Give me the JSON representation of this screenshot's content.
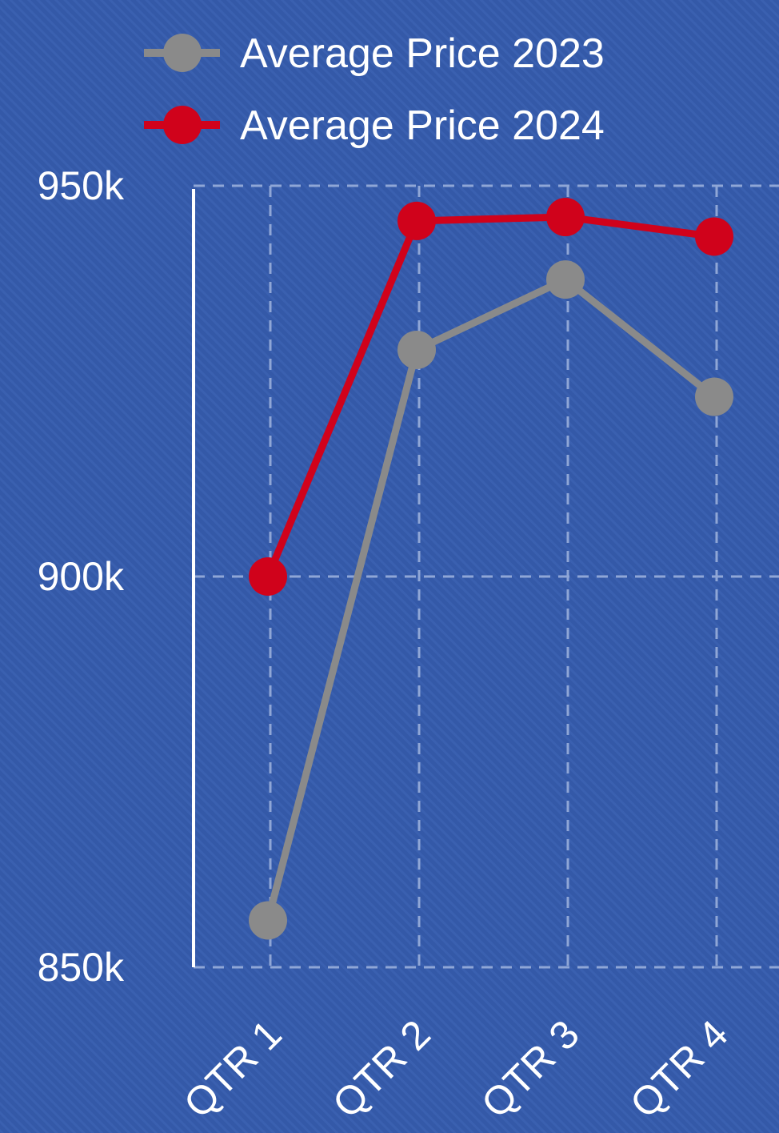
{
  "chart_data": {
    "type": "line",
    "categories": [
      "QTR 1",
      "QTR 2",
      "QTR 3",
      "QTR 4"
    ],
    "series": [
      {
        "name": "Average Price 2023",
        "color": "#8a8a8a",
        "values": [
          856000,
          929000,
          938000,
          923000
        ]
      },
      {
        "name": "Average Price 2024",
        "color": "#d0021b",
        "values": [
          900000,
          945500,
          946000,
          943500
        ]
      }
    ],
    "ylim": [
      850000,
      950000
    ],
    "yticks": [
      {
        "value": 850000,
        "label": "850k"
      },
      {
        "value": 900000,
        "label": "900k"
      },
      {
        "value": 950000,
        "label": "950k"
      }
    ],
    "grid": true,
    "legend": "top"
  }
}
